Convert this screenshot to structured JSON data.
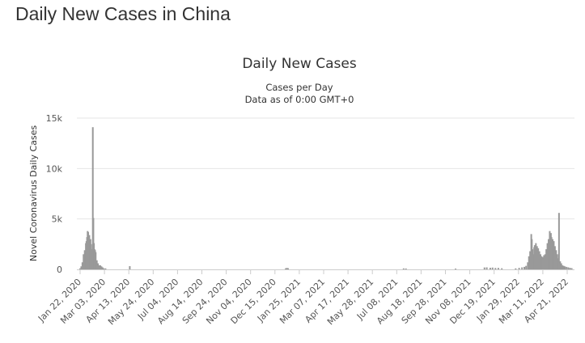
{
  "page": {
    "heading": "Daily New Cases in China"
  },
  "chart_data": {
    "type": "bar",
    "title": "Daily New Cases",
    "subtitle_lines": [
      "Cases per Day",
      "Data as of 0:00 GMT+0"
    ],
    "ylabel": "Novel Coronavirus Daily Cases",
    "xlabel": "",
    "ylim": [
      0,
      15000
    ],
    "y_ticks": [
      0,
      5000,
      10000,
      15000
    ],
    "y_tick_labels": [
      "0",
      "5k",
      "10k",
      "15k"
    ],
    "x_start_date": "2020-01-22",
    "x_end_date": "2022-05-24",
    "x_tick_labels": [
      "Jan 22, 2020",
      "Mar 03, 2020",
      "Apr 13, 2020",
      "May 24, 2020",
      "Jul 04, 2020",
      "Aug 14, 2020",
      "Sep 24, 2020",
      "Nov 04, 2020",
      "Dec 15, 2020",
      "Jan 25, 2021",
      "Mar 07, 2021",
      "Apr 17, 2021",
      "May 28, 2021",
      "Jul 08, 2021",
      "Aug 18, 2021",
      "Sep 28, 2021",
      "Nov 08, 2021",
      "Dec 19, 2021",
      "Jan 29, 2022",
      "Mar 11, 2022",
      "Apr 21, 2022"
    ],
    "grid": true,
    "legend": "none",
    "bar_color": "#999999",
    "series": [
      {
        "points": [
          [
            "2020-01-22",
            100
          ],
          [
            "2020-01-24",
            300
          ],
          [
            "2020-01-26",
            700
          ],
          [
            "2020-01-28",
            1500
          ],
          [
            "2020-01-30",
            1900
          ],
          [
            "2020-02-01",
            2600
          ],
          [
            "2020-02-02",
            2800
          ],
          [
            "2020-02-03",
            3200
          ],
          [
            "2020-02-04",
            3800
          ],
          [
            "2020-02-05",
            3700
          ],
          [
            "2020-02-06",
            3200
          ],
          [
            "2020-02-07",
            3400
          ],
          [
            "2020-02-08",
            2700
          ],
          [
            "2020-02-09",
            3000
          ],
          [
            "2020-02-10",
            2500
          ],
          [
            "2020-02-11",
            2000
          ],
          [
            "2020-02-12",
            2000
          ],
          [
            "2020-02-13",
            14100
          ],
          [
            "2020-02-14",
            5100
          ],
          [
            "2020-02-15",
            2600
          ],
          [
            "2020-02-16",
            2000
          ],
          [
            "2020-02-17",
            1900
          ],
          [
            "2020-02-18",
            1700
          ],
          [
            "2020-02-19",
            400
          ],
          [
            "2020-02-20",
            900
          ],
          [
            "2020-02-22",
            600
          ],
          [
            "2020-02-24",
            400
          ],
          [
            "2020-02-26",
            400
          ],
          [
            "2020-02-28",
            300
          ],
          [
            "2020-03-01",
            200
          ],
          [
            "2020-03-03",
            100
          ],
          [
            "2020-03-06",
            100
          ],
          [
            "2020-04-17",
            320
          ],
          [
            "2021-01-12",
            110
          ],
          [
            "2021-01-14",
            140
          ],
          [
            "2021-01-16",
            120
          ],
          [
            "2021-08-04",
            100
          ],
          [
            "2021-08-08",
            90
          ],
          [
            "2021-11-02",
            80
          ],
          [
            "2021-12-22",
            190
          ],
          [
            "2021-12-26",
            200
          ],
          [
            "2022-01-01",
            160
          ],
          [
            "2022-01-05",
            180
          ],
          [
            "2022-01-10",
            140
          ],
          [
            "2022-01-15",
            150
          ],
          [
            "2022-01-21",
            110
          ],
          [
            "2022-02-14",
            100
          ],
          [
            "2022-02-20",
            150
          ],
          [
            "2022-02-25",
            200
          ],
          [
            "2022-03-01",
            250
          ],
          [
            "2022-03-04",
            350
          ],
          [
            "2022-03-07",
            700
          ],
          [
            "2022-03-09",
            1300
          ],
          [
            "2022-03-11",
            1800
          ],
          [
            "2022-03-13",
            3500
          ],
          [
            "2022-03-14",
            3000
          ],
          [
            "2022-03-15",
            2000
          ],
          [
            "2022-03-16",
            1500
          ],
          [
            "2022-03-18",
            2200
          ],
          [
            "2022-03-19",
            2400
          ],
          [
            "2022-03-21",
            2600
          ],
          [
            "2022-03-23",
            2300
          ],
          [
            "2022-03-25",
            2100
          ],
          [
            "2022-03-27",
            1800
          ],
          [
            "2022-03-29",
            1500
          ],
          [
            "2022-03-31",
            1300
          ],
          [
            "2022-04-02",
            1200
          ],
          [
            "2022-04-04",
            1400
          ],
          [
            "2022-04-06",
            1500
          ],
          [
            "2022-04-08",
            2000
          ],
          [
            "2022-04-10",
            2600
          ],
          [
            "2022-04-12",
            3000
          ],
          [
            "2022-04-14",
            3800
          ],
          [
            "2022-04-16",
            3600
          ],
          [
            "2022-04-17",
            3200
          ],
          [
            "2022-04-19",
            3000
          ],
          [
            "2022-04-21",
            2800
          ],
          [
            "2022-04-23",
            2300
          ],
          [
            "2022-04-25",
            1900
          ],
          [
            "2022-04-27",
            1500
          ],
          [
            "2022-04-29",
            1100
          ],
          [
            "2022-04-30",
            5600
          ],
          [
            "2022-05-02",
            800
          ],
          [
            "2022-05-04",
            600
          ],
          [
            "2022-05-06",
            400
          ],
          [
            "2022-05-08",
            350
          ],
          [
            "2022-05-10",
            300
          ],
          [
            "2022-05-13",
            250
          ],
          [
            "2022-05-16",
            200
          ],
          [
            "2022-05-19",
            150
          ],
          [
            "2022-05-22",
            120
          ]
        ]
      }
    ]
  }
}
